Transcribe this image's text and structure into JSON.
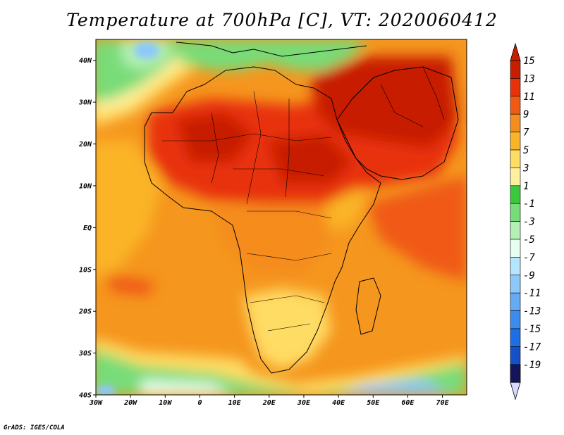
{
  "title": "Temperature at 700hPa [C], VT: 2020060412",
  "credit": "GrADS: IGES/COLA",
  "map": {
    "lon_range": [
      -30,
      77
    ],
    "lat_range": [
      -40,
      45
    ],
    "lat_ticks": [
      {
        "value": 40,
        "label": "40N"
      },
      {
        "value": 30,
        "label": "30N"
      },
      {
        "value": 20,
        "label": "20N"
      },
      {
        "value": 10,
        "label": "10N"
      },
      {
        "value": 0,
        "label": "EQ"
      },
      {
        "value": -10,
        "label": "10S"
      },
      {
        "value": -20,
        "label": "20S"
      },
      {
        "value": -30,
        "label": "30S"
      },
      {
        "value": -40,
        "label": "40S"
      }
    ],
    "lon_ticks": [
      {
        "value": -30,
        "label": "30W"
      },
      {
        "value": -20,
        "label": "20W"
      },
      {
        "value": -10,
        "label": "10W"
      },
      {
        "value": 0,
        "label": "0"
      },
      {
        "value": 10,
        "label": "10E"
      },
      {
        "value": 20,
        "label": "20E"
      },
      {
        "value": 30,
        "label": "30E"
      },
      {
        "value": 40,
        "label": "40E"
      },
      {
        "value": 50,
        "label": "50E"
      },
      {
        "value": 60,
        "label": "60E"
      },
      {
        "value": 70,
        "label": "70E"
      }
    ]
  },
  "colorbar": {
    "labels": [
      "15",
      "13",
      "11",
      "9",
      "7",
      "5",
      "3",
      "1",
      "-1",
      "-3",
      "-5",
      "-7",
      "-9",
      "-11",
      "-13",
      "-15",
      "-17",
      "-19"
    ],
    "colors": [
      "#c81e00",
      "#e8320a",
      "#f05a14",
      "#f58c1e",
      "#fab428",
      "#ffdc64",
      "#fff0a0",
      "#3cc83c",
      "#78dc78",
      "#b4f0b4",
      "#e6fff0",
      "#b4e6ff",
      "#8cc8fa",
      "#64aaf5",
      "#3c8cf0",
      "#1e6ee6",
      "#1450c8",
      "#0a2896",
      "#14145a"
    ],
    "below_arrow_color": "#d8d8ff",
    "above_arrow_color": "#c81e00"
  }
}
